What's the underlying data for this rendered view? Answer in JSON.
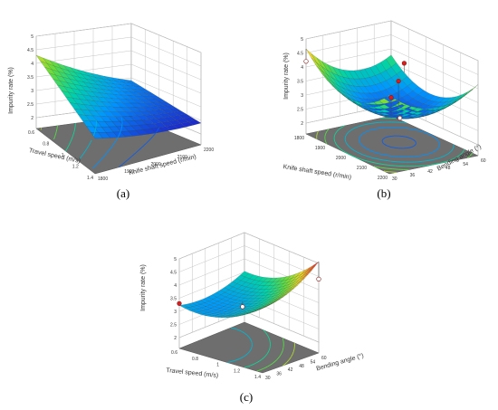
{
  "figure": {
    "panels": [
      "(a)",
      "(b)",
      "(c)"
    ]
  },
  "chart_data": [
    {
      "type": "surface",
      "panel": "(a)",
      "zlabel": "Impurity rate (%)",
      "xlabel": "Knife shaft speed (r/min)",
      "ylabel": "Travel speed (m/s)",
      "z_ticks": [
        "2",
        "2.5",
        "3",
        "3.5",
        "4",
        "4.5",
        "5"
      ],
      "x_ticks": [
        "1800",
        "1900",
        "2000",
        "2100",
        "2200"
      ],
      "y_ticks": [
        "0.6",
        "0.8",
        "1",
        "1.2",
        "1.4"
      ],
      "zlim": [
        2,
        5
      ],
      "xlim": [
        1800,
        2200
      ],
      "ylim": [
        0.6,
        1.4
      ],
      "corner_values": {
        "travel_0.6_knife_1800": 2.9,
        "travel_0.6_knife_2200": 2.5,
        "travel_1.4_knife_1800": 4.3,
        "travel_1.4_knife_2200": 3.4
      }
    },
    {
      "type": "surface",
      "panel": "(b)",
      "zlabel": "Impurity rate (%)",
      "xlabel": "Bending angle (°)",
      "ylabel": "Knife shaft speed (r/min)",
      "z_ticks": [
        "2",
        "2.5",
        "3",
        "3.5",
        "4",
        "4.5",
        "5"
      ],
      "x_ticks": [
        "30",
        "36",
        "42",
        "48",
        "54",
        "60"
      ],
      "y_ticks": [
        "1800",
        "1900",
        "2000",
        "2100",
        "2200"
      ],
      "zlim": [
        2,
        5
      ],
      "xlim": [
        30,
        60
      ],
      "ylim": [
        1800,
        2200
      ],
      "design_points": [
        4.2,
        4.75,
        3.7,
        3.3,
        2.5
      ]
    },
    {
      "type": "surface",
      "panel": "(c)",
      "zlabel": "Impurity rate (%)",
      "xlabel": "Bending angle (°)",
      "ylabel": "Travel speed (m/s)",
      "z_ticks": [
        "2",
        "2.5",
        "3",
        "3.5",
        "4",
        "4.5",
        "5"
      ],
      "x_ticks": [
        "30",
        "36",
        "42",
        "48",
        "54",
        "60"
      ],
      "y_ticks": [
        "0.6",
        "0.8",
        "1",
        "1.2",
        "1.4"
      ],
      "zlim": [
        2,
        5
      ],
      "xlim": [
        30,
        60
      ],
      "ylim": [
        0.6,
        1.4
      ],
      "design_points": [
        3.3,
        4.4,
        3.0
      ]
    }
  ]
}
